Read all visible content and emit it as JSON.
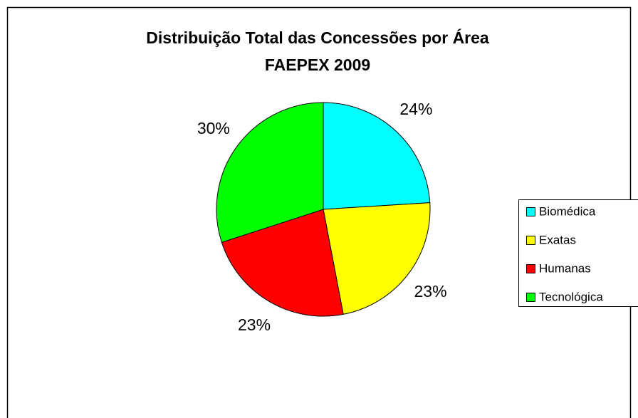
{
  "chart_data": {
    "type": "pie",
    "title": "Distribuição Total das Concessões por Área",
    "subtitle": "FAEPEX 2009",
    "categories": [
      "Biomédica",
      "Exatas",
      "Humanas",
      "Tecnológica"
    ],
    "values": [
      24,
      23,
      23,
      30
    ],
    "value_labels": [
      "24%",
      "23%",
      "23%",
      "30%"
    ],
    "colors": [
      "#00ffff",
      "#ffff00",
      "#ff0000",
      "#00ff00"
    ],
    "legend": "right"
  }
}
